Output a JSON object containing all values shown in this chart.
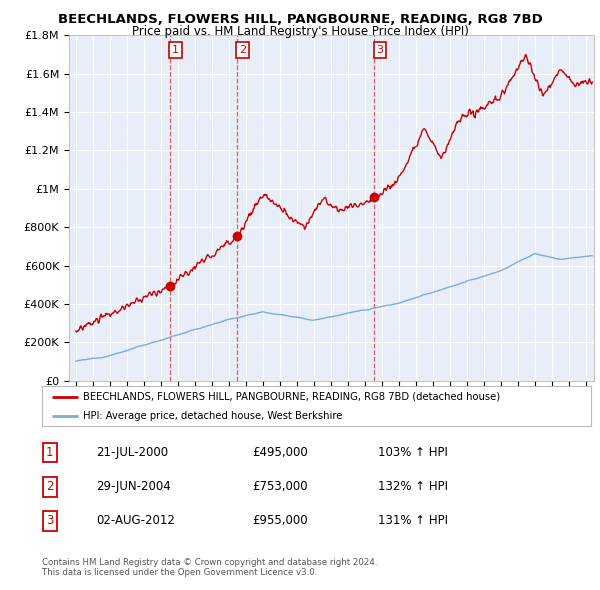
{
  "title": "BEECHLANDS, FLOWERS HILL, PANGBOURNE, READING, RG8 7BD",
  "subtitle": "Price paid vs. HM Land Registry's House Price Index (HPI)",
  "legend_line1": "BEECHLANDS, FLOWERS HILL, PANGBOURNE, READING, RG8 7BD (detached house)",
  "legend_line2": "HPI: Average price, detached house, West Berkshire",
  "footer1": "Contains HM Land Registry data © Crown copyright and database right 2024.",
  "footer2": "This data is licensed under the Open Government Licence v3.0.",
  "sale_points": [
    {
      "num": 1,
      "date": "21-JUL-2000",
      "price": "£495,000",
      "pct": "103%",
      "year": 2000.55
    },
    {
      "num": 2,
      "date": "29-JUN-2004",
      "price": "£753,000",
      "pct": "132%",
      "year": 2004.49
    },
    {
      "num": 3,
      "date": "02-AUG-2012",
      "price": "£955,000",
      "pct": "131%",
      "year": 2012.58
    }
  ],
  "sale_values": [
    495000,
    753000,
    955000
  ],
  "ylim": [
    0,
    1800000
  ],
  "xlim_left": 1994.6,
  "xlim_right": 2025.5,
  "red_color": "#cc0000",
  "blue_color": "#7aacdc",
  "dashed_color": "#dd4444",
  "background_color": "#ffffff",
  "chart_bg": "#e8eef8",
  "grid_color": "#ffffff"
}
